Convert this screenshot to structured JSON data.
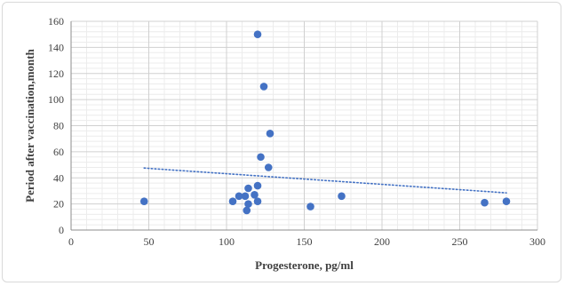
{
  "chart_data": {
    "type": "scatter",
    "title": "",
    "xlabel": "Progesterone, pg/ml",
    "ylabel": "Period after vaccination,month",
    "xlim": [
      0,
      300
    ],
    "ylim": [
      0,
      160
    ],
    "x_ticks": [
      0,
      50,
      100,
      150,
      200,
      250,
      300
    ],
    "y_ticks": [
      0,
      20,
      40,
      60,
      80,
      100,
      120,
      140,
      160
    ],
    "grid": true,
    "legend": "none",
    "series": [
      {
        "color": "#4472c4",
        "points": [
          {
            "x": 47,
            "y": 22
          },
          {
            "x": 104,
            "y": 22
          },
          {
            "x": 108,
            "y": 26
          },
          {
            "x": 112,
            "y": 26
          },
          {
            "x": 113,
            "y": 15
          },
          {
            "x": 114,
            "y": 20
          },
          {
            "x": 114,
            "y": 32
          },
          {
            "x": 118,
            "y": 27
          },
          {
            "x": 120,
            "y": 22
          },
          {
            "x": 120,
            "y": 34
          },
          {
            "x": 120,
            "y": 150
          },
          {
            "x": 122,
            "y": 56
          },
          {
            "x": 124,
            "y": 110
          },
          {
            "x": 127,
            "y": 48
          },
          {
            "x": 128,
            "y": 74
          },
          {
            "x": 154,
            "y": 18
          },
          {
            "x": 174,
            "y": 26
          },
          {
            "x": 266,
            "y": 21
          },
          {
            "x": 280,
            "y": 22
          }
        ]
      }
    ],
    "trendline": {
      "type": "linear",
      "style": "dotted",
      "color": "#4472c4",
      "start": {
        "x": 47,
        "y": 47.5
      },
      "end": {
        "x": 280,
        "y": 28.5
      }
    }
  }
}
